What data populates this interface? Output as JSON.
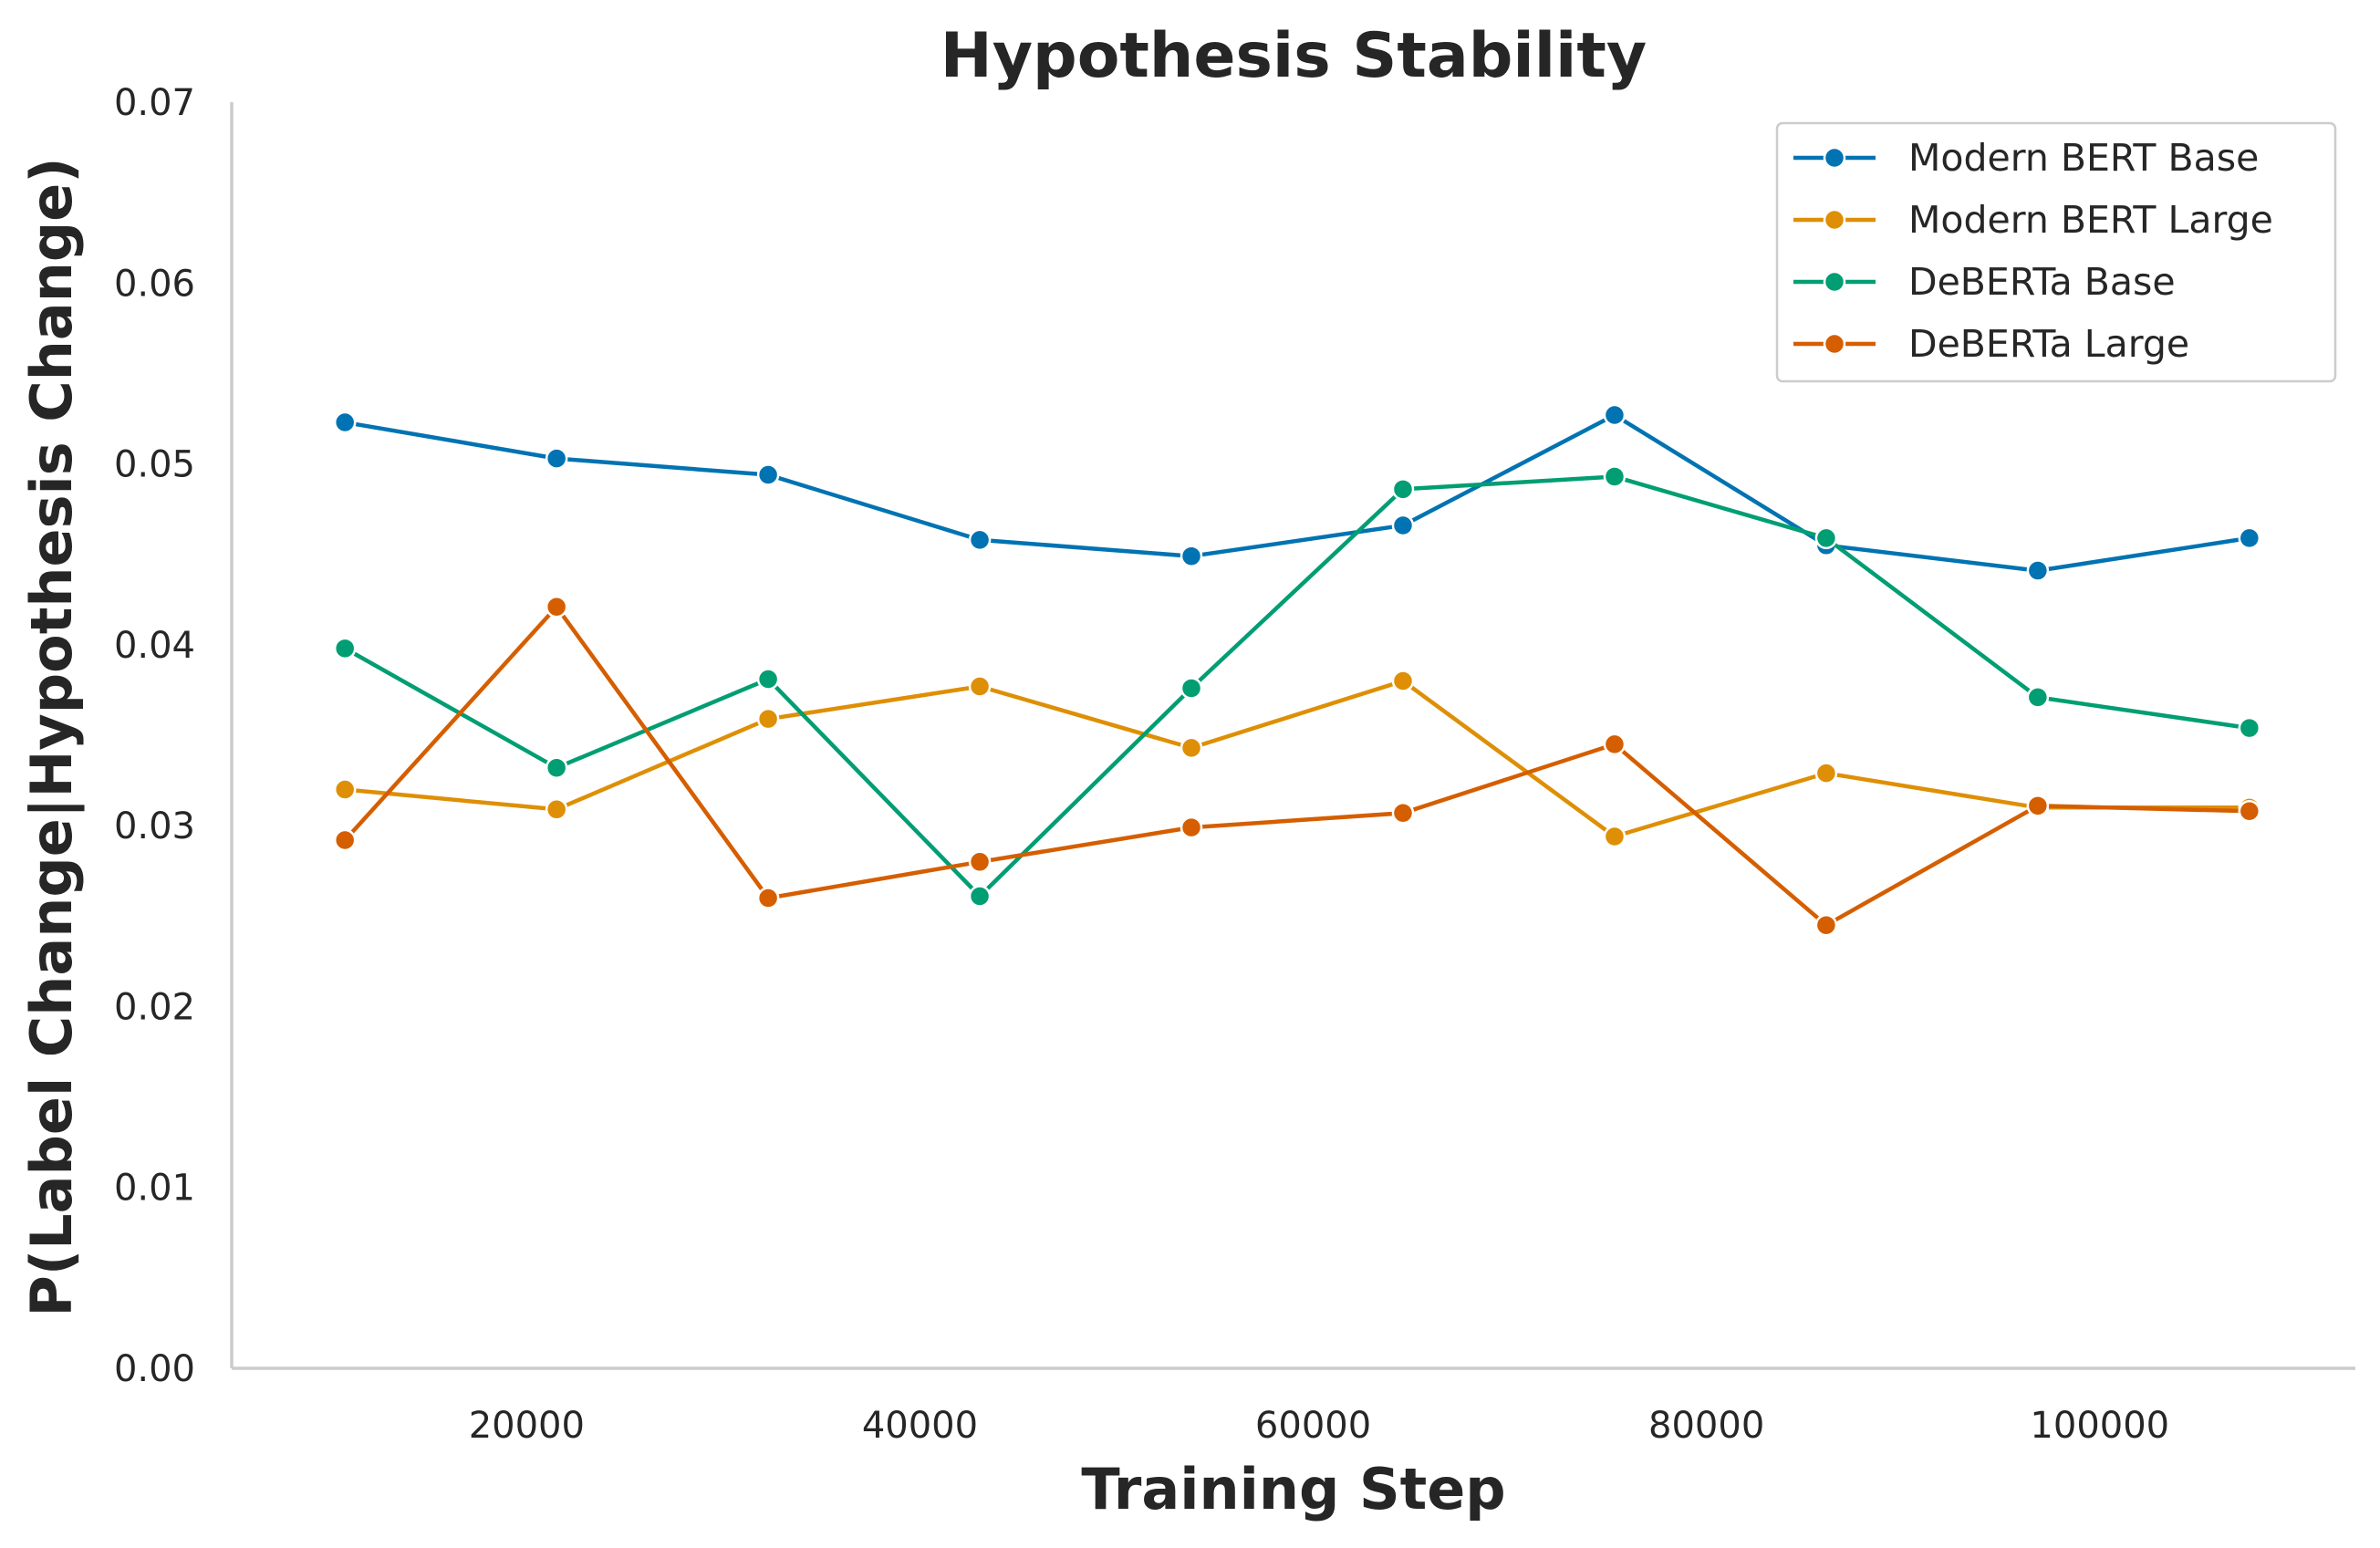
{
  "chart_data": {
    "type": "line",
    "title": "Hypothesis Stability",
    "xlabel": "Training Step",
    "ylabel": "P(Label Change|Hypothesis Change)",
    "xlim": [
      5000,
      113000
    ],
    "ylim": [
      0.0,
      0.07
    ],
    "xticks": [
      20000,
      40000,
      60000,
      80000,
      100000
    ],
    "xtick_labels": [
      "20000",
      "40000",
      "60000",
      "80000",
      "100000"
    ],
    "yticks": [
      0.0,
      0.01,
      0.02,
      0.03,
      0.04,
      0.05,
      0.06,
      0.07
    ],
    "ytick_labels": [
      "0.00",
      "0.01",
      "0.02",
      "0.03",
      "0.04",
      "0.05",
      "0.06",
      "0.07"
    ],
    "grid": false,
    "legend_position": "top-right",
    "x": [
      10761,
      21522,
      32283,
      43044,
      53805,
      64566,
      75327,
      86088,
      96849,
      107610
    ],
    "series": [
      {
        "name": "Modern BERT Base",
        "color": "#0173b2",
        "values": [
          0.0523,
          0.0503,
          0.0494,
          0.0458,
          0.0449,
          0.0466,
          0.0527,
          0.0455,
          0.0441,
          0.0459
        ]
      },
      {
        "name": "Modern BERT Large",
        "color": "#de8f05",
        "values": [
          0.032,
          0.0309,
          0.0359,
          0.0377,
          0.0343,
          0.038,
          0.0294,
          0.0329,
          0.031,
          0.031
        ]
      },
      {
        "name": "DeBERTa Base",
        "color": "#029e73",
        "values": [
          0.0398,
          0.0332,
          0.0381,
          0.0261,
          0.0376,
          0.0486,
          0.0493,
          0.0459,
          0.0371,
          0.0354
        ]
      },
      {
        "name": "DeBERTa Large",
        "color": "#d55e00",
        "values": [
          0.0292,
          0.0421,
          0.026,
          0.028,
          0.0299,
          0.0307,
          0.0345,
          0.0245,
          0.0311,
          0.0308
        ]
      }
    ]
  }
}
